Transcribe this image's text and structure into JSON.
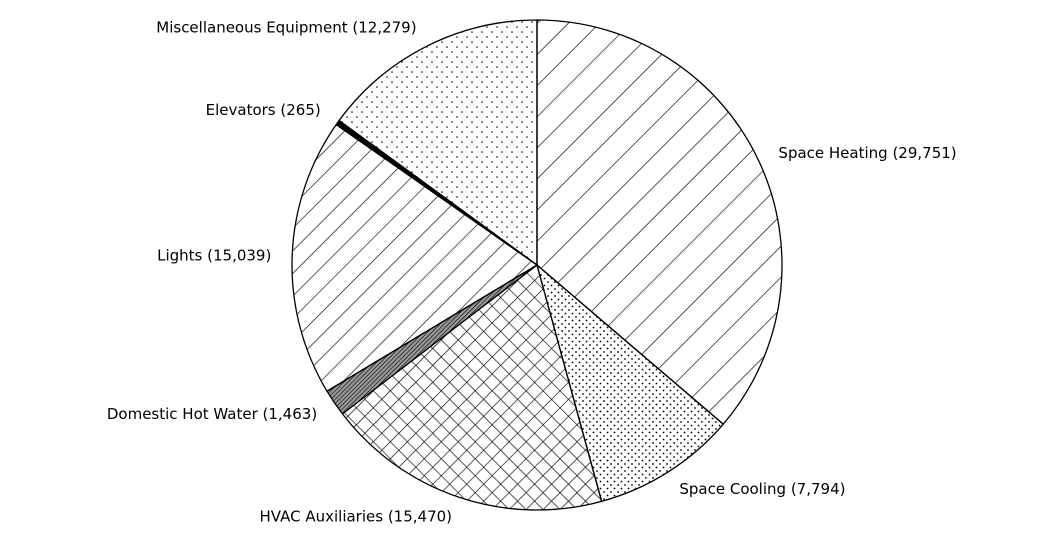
{
  "chart_data": {
    "type": "pie",
    "categories": [
      "Space Heating (29,751)",
      "Space Cooling (7,794)",
      "HVAC Auxiliaries (15,470)",
      "Domestic Hot Water (1,463)",
      "Lights (15,039)",
      "Elevators (265)",
      "Miscellaneous Equipment (12,279)"
    ],
    "values": [
      29751,
      7794,
      15470,
      1463,
      15039,
      265,
      12279
    ]
  }
}
